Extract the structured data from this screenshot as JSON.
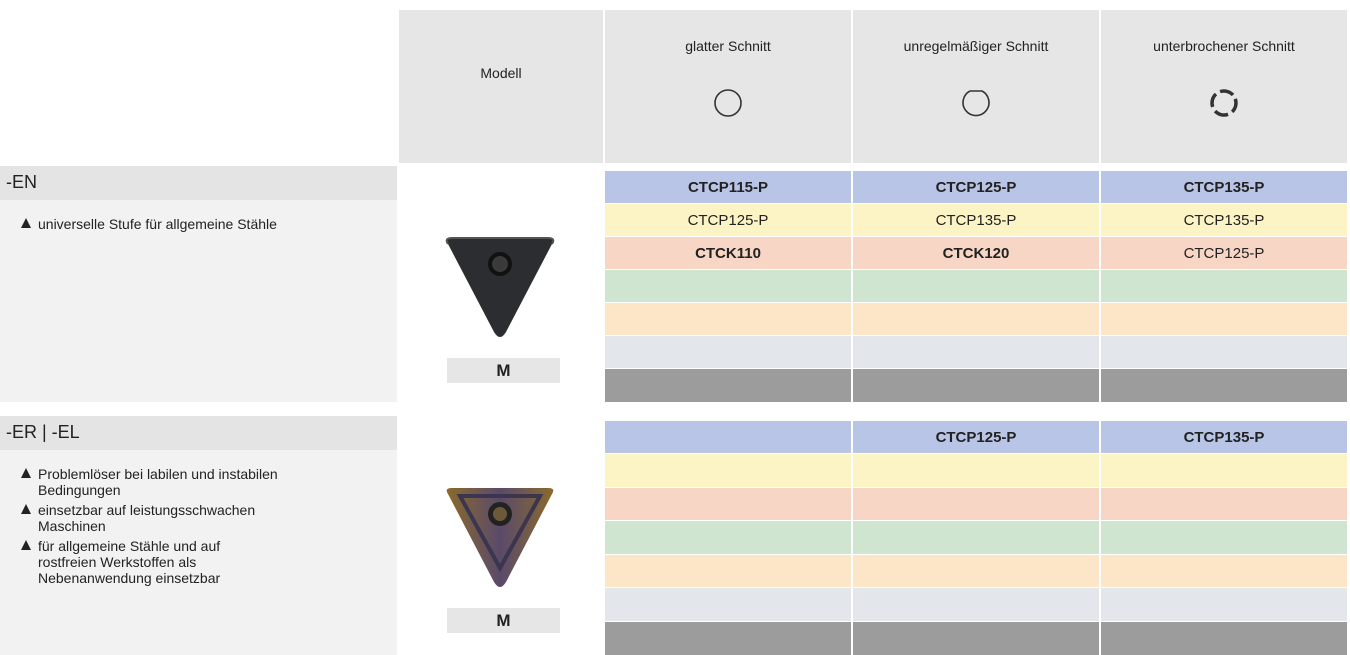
{
  "header": {
    "model_label": "Modell",
    "columns": [
      "glatter Schnitt",
      "unregelmäßiger Schnitt",
      "unterbrochener Schnitt"
    ]
  },
  "sections": [
    {
      "name": "-EN",
      "bullets": [
        "universelle Stufe für allgemeine Stähle"
      ],
      "grade": "M",
      "rows": [
        [
          {
            "text": "CTCP115-P",
            "bold": true
          },
          {
            "text": "CTCP125-P",
            "bold": true
          },
          {
            "text": "CTCP135-P",
            "bold": true
          }
        ],
        [
          {
            "text": "CTCP125-P",
            "bold": false
          },
          {
            "text": "CTCP135-P",
            "bold": false
          },
          {
            "text": "CTCP135-P",
            "bold": false
          }
        ],
        [
          {
            "text": "CTCK110",
            "bold": true
          },
          {
            "text": "CTCK120",
            "bold": true
          },
          {
            "text": "CTCP125-P",
            "bold": false
          }
        ],
        [
          null,
          null,
          null
        ],
        [
          null,
          null,
          null
        ],
        [
          null,
          null,
          null
        ],
        [
          null,
          null,
          null
        ]
      ]
    },
    {
      "name": "-ER | -EL",
      "bullets": [
        "Problemlöser bei labilen und instabilen Bedingungen",
        "einsetzbar auf leistungsschwachen Maschinen",
        "für allgemeine Stähle und auf rostfreien Werkstoffen als Nebenanwendung einsetzbar"
      ],
      "grade": "M",
      "rows": [
        [
          null,
          {
            "text": "CTCP125-P",
            "bold": true
          },
          {
            "text": "CTCP135-P",
            "bold": true
          }
        ],
        [
          null,
          null,
          null
        ],
        [
          null,
          null,
          null
        ],
        [
          null,
          null,
          null
        ],
        [
          null,
          null,
          null
        ],
        [
          null,
          null,
          null
        ],
        [
          null,
          null,
          null
        ]
      ]
    }
  ]
}
